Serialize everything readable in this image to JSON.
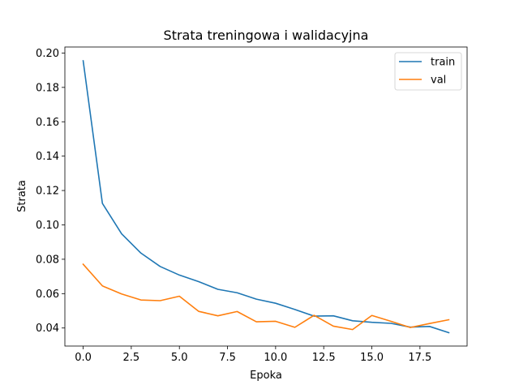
{
  "chart_data": {
    "type": "line",
    "title": "Strata treningowa i walidacyjna",
    "xlabel": "Epoka",
    "ylabel": "Strata",
    "xlim": [
      -0.95,
      19.95
    ],
    "ylim": [
      0.0295,
      0.2035
    ],
    "x": [
      0,
      1,
      2,
      3,
      4,
      5,
      6,
      7,
      8,
      9,
      10,
      11,
      12,
      13,
      14,
      15,
      16,
      17,
      18,
      19
    ],
    "x_ticks": [
      0.0,
      2.5,
      5.0,
      7.5,
      10.0,
      12.5,
      15.0,
      17.5
    ],
    "x_tick_labels": [
      "0.0",
      "2.5",
      "5.0",
      "7.5",
      "10.0",
      "12.5",
      "15.0",
      "17.5"
    ],
    "y_ticks": [
      0.04,
      0.06,
      0.08,
      0.1,
      0.12,
      0.14,
      0.16,
      0.18,
      0.2
    ],
    "y_tick_labels": [
      "0.04",
      "0.06",
      "0.08",
      "0.10",
      "0.12",
      "0.14",
      "0.16",
      "0.18",
      "0.20"
    ],
    "grid": false,
    "legend_position": "upper right",
    "series": [
      {
        "name": "train",
        "color": "#1f77b4",
        "values": [
          0.1955,
          0.1125,
          0.0948,
          0.0836,
          0.0758,
          0.0708,
          0.067,
          0.0625,
          0.0605,
          0.0568,
          0.0544,
          0.0508,
          0.0469,
          0.0471,
          0.0442,
          0.0433,
          0.0427,
          0.0405,
          0.0409,
          0.0373
        ]
      },
      {
        "name": "val",
        "color": "#ff7f0e",
        "values": [
          0.0771,
          0.0645,
          0.0598,
          0.0563,
          0.0559,
          0.0585,
          0.0497,
          0.0471,
          0.0496,
          0.0436,
          0.0439,
          0.0404,
          0.0474,
          0.0411,
          0.0391,
          0.0473,
          0.0439,
          0.0403,
          0.0426,
          0.0448
        ]
      }
    ]
  }
}
